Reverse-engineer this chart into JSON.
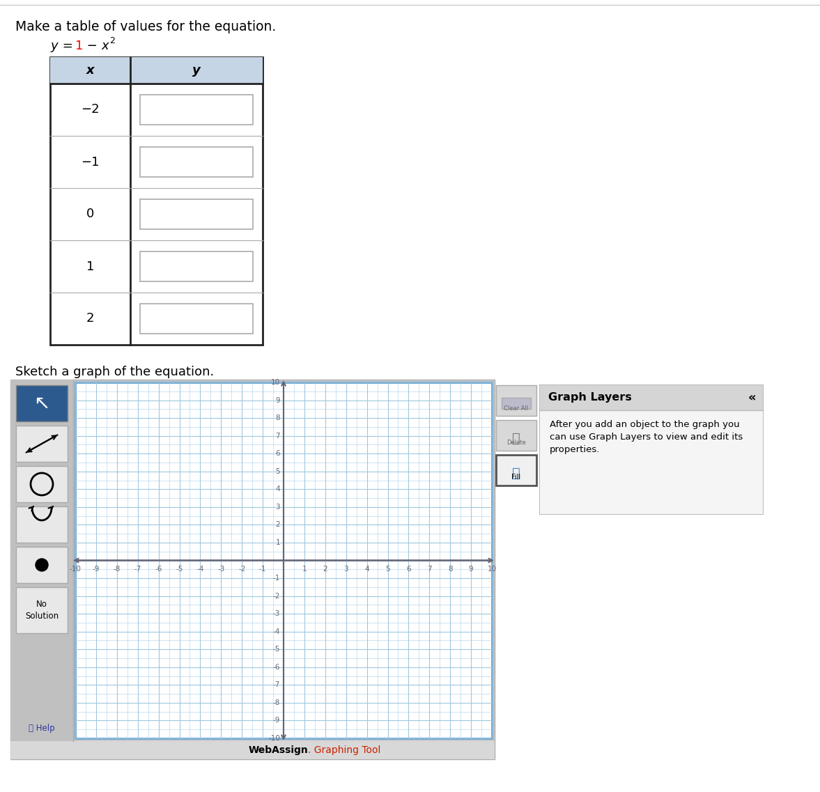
{
  "title_text": "Make a table of values for the equation.",
  "table_header_x": "x",
  "table_header_y": "y",
  "table_bg_header": "#c5d5e5",
  "table_border_color": "#222222",
  "table_input_border": "#aaaaaa",
  "table_input_bg": "#ffffff",
  "x_values": [
    "−2",
    "−1",
    "0",
    "1",
    "2"
  ],
  "sketch_label": "Sketch a graph of the equation.",
  "graph_grid_minor_color": "#b8d8ee",
  "graph_grid_major_color": "#9fc8e0",
  "graph_border_color": "#5599cc",
  "graph_axis_color": "#666677",
  "panel_bg": "#cccccc",
  "toolbar_bg": "#c0c0c0",
  "bottom_bar_bg": "#d8d8d8",
  "graph_layers_title": "Graph Layers",
  "graph_layers_text1": "After you add an object to the graph you",
  "graph_layers_text2": "can use Graph Layers to view and edit its",
  "graph_layers_text3": "properties.",
  "bg_color": "#ffffff",
  "outer_border_color": "#cccccc",
  "webassign_color": "#cc2200"
}
